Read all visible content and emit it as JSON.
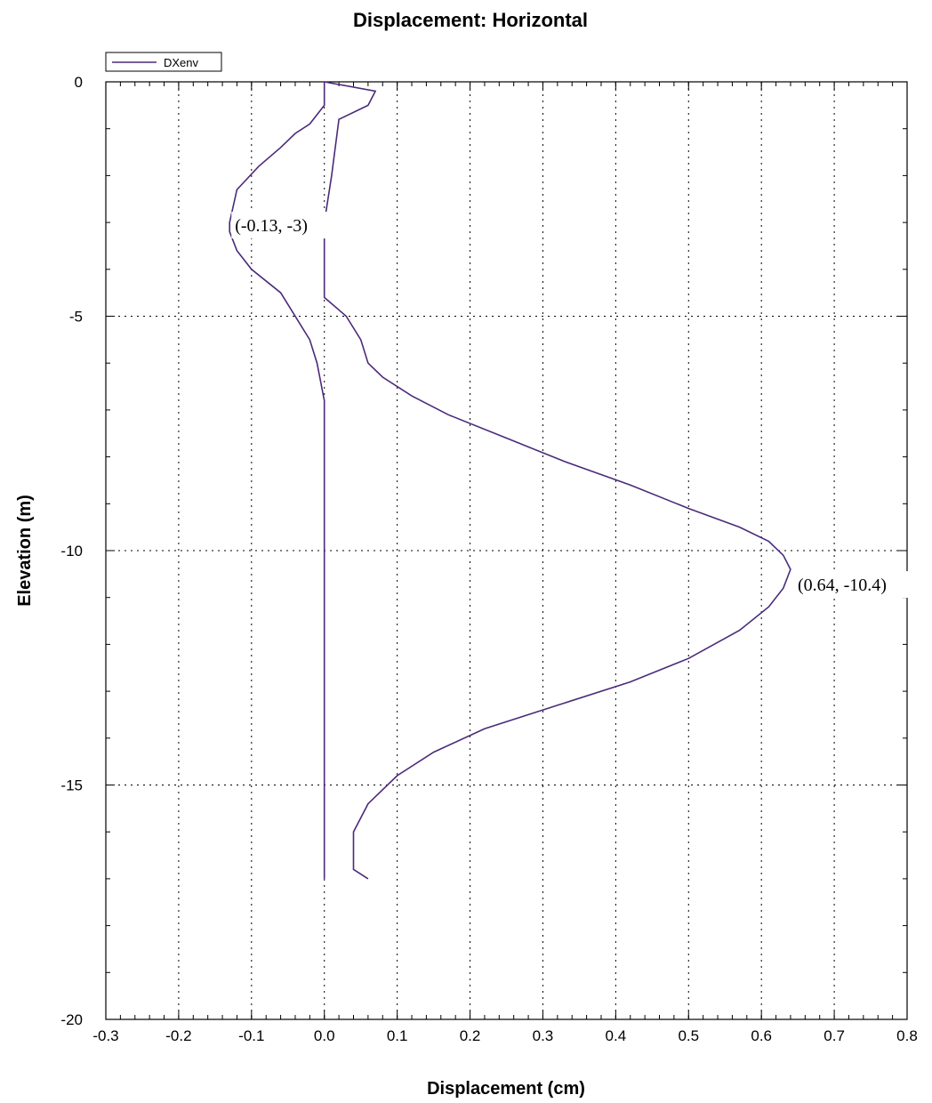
{
  "chart_data": {
    "type": "line",
    "title": "Displacement: Horizontal",
    "xlabel": "Displacement (cm)",
    "ylabel": "Elevation (m)",
    "xlim": [
      -0.3,
      0.8
    ],
    "ylim": [
      -20,
      0
    ],
    "x_ticks": [
      -0.3,
      -0.2,
      -0.1,
      0.0,
      0.1,
      0.2,
      0.3,
      0.4,
      0.5,
      0.6,
      0.7,
      0.8
    ],
    "x_tick_labels": [
      "-0.3",
      "-0.2",
      "-0.1",
      "0.0",
      "0.1",
      "0.2",
      "0.3",
      "0.4",
      "0.5",
      "0.6",
      "0.7",
      "0.8"
    ],
    "y_ticks": [
      0,
      -5,
      -10,
      -15,
      -20
    ],
    "y_tick_labels": [
      "0",
      "-5",
      "-10",
      "-15",
      "-20"
    ],
    "grid": true,
    "legend_position": "top-left",
    "series": [
      {
        "name": "DXenv",
        "color": "#4b2a7a",
        "x": [
          0.0,
          0.0,
          0.0,
          -0.01,
          -0.02,
          -0.06,
          -0.1,
          -0.12,
          -0.13,
          -0.13,
          -0.12,
          -0.09,
          -0.06,
          -0.04,
          -0.02,
          -0.01,
          0.0,
          0.0,
          0.0,
          0.0,
          0.0,
          0.0
        ],
        "y": [
          -17.0,
          -10.0,
          -6.8,
          -6.0,
          -5.5,
          -4.5,
          -4.0,
          -3.6,
          -3.2,
          -3.0,
          -2.3,
          -1.8,
          -1.4,
          -1.1,
          -0.9,
          -0.7,
          -0.5,
          -0.3,
          -0.1,
          0.0,
          0.0,
          0.0
        ],
        "x2": [
          0.0,
          0.07,
          0.06,
          0.02,
          0.01,
          0.0,
          0.0,
          0.0,
          0.03,
          0.05,
          0.06,
          0.08,
          0.12,
          0.17,
          0.25,
          0.33,
          0.42,
          0.5,
          0.57,
          0.61,
          0.63,
          0.64,
          0.63,
          0.61,
          0.57,
          0.5,
          0.42,
          0.32,
          0.22,
          0.15,
          0.1,
          0.06,
          0.04,
          0.04,
          0.04,
          0.06
        ],
        "y2": [
          0.0,
          -0.2,
          -0.5,
          -0.8,
          -2.0,
          -3.0,
          -4.0,
          -4.6,
          -5.0,
          -5.5,
          -6.0,
          -6.3,
          -6.7,
          -7.1,
          -7.6,
          -8.1,
          -8.6,
          -9.1,
          -9.5,
          -9.8,
          -10.1,
          -10.4,
          -10.8,
          -11.2,
          -11.7,
          -12.3,
          -12.8,
          -13.3,
          -13.8,
          -14.3,
          -14.8,
          -15.4,
          -16.0,
          -16.3,
          -16.8,
          -17.0
        ]
      }
    ],
    "annotations": [
      {
        "text": "(-0.13, -3)",
        "x": -0.13,
        "y": -3
      },
      {
        "text": "(0.64, -10.4)",
        "x": 0.64,
        "y": -10.4
      }
    ]
  }
}
